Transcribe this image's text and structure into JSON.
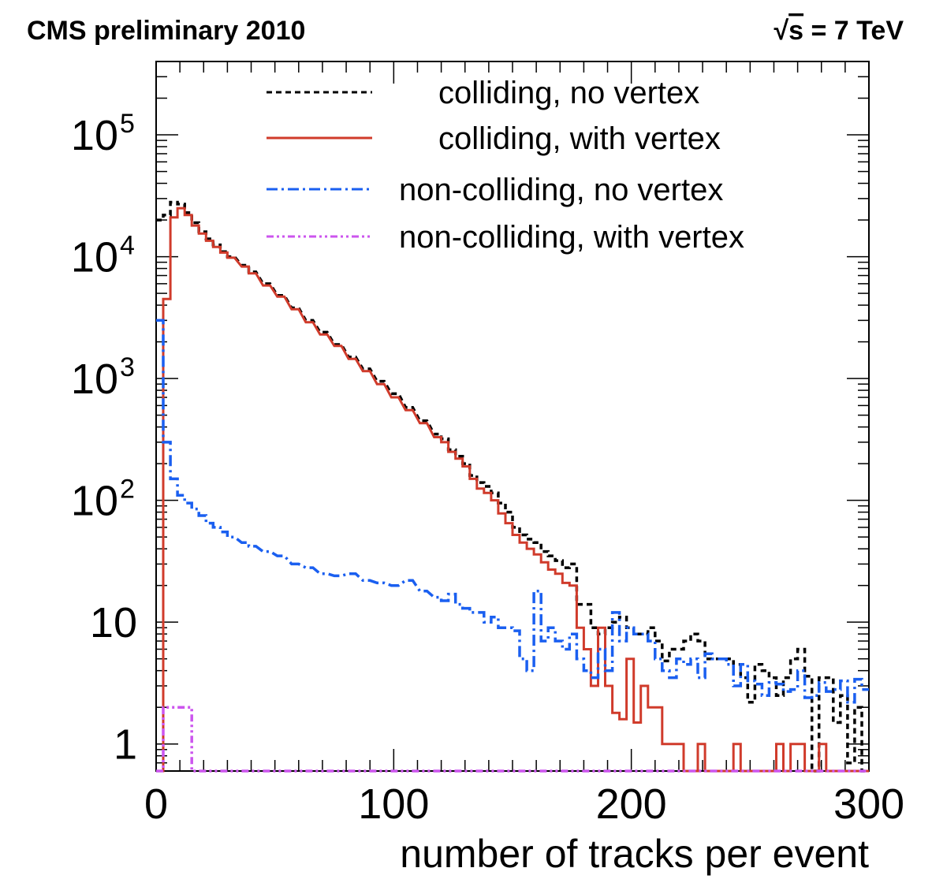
{
  "header": {
    "left": "CMS preliminary 2010",
    "right_sqrt": "√",
    "right_s": "s",
    "right_rest": " = 7 TeV"
  },
  "chart_data": {
    "type": "line",
    "step": true,
    "title": "",
    "xlabel": "number of tracks per event",
    "ylabel": "",
    "xlim": [
      0,
      300
    ],
    "ylim": [
      0.6,
      400000
    ],
    "yscale": "log",
    "grid": false,
    "legend_position": "top-right",
    "bin_width": 3,
    "x_ticks": [
      {
        "value": 0,
        "label": "0"
      },
      {
        "value": 100,
        "label": "100"
      },
      {
        "value": 200,
        "label": "200"
      },
      {
        "value": 300,
        "label": "300"
      }
    ],
    "y_ticks": [
      {
        "value": 1,
        "base": "1",
        "exp": ""
      },
      {
        "value": 10,
        "base": "10",
        "exp": ""
      },
      {
        "value": 100,
        "base": "10",
        "exp": "2"
      },
      {
        "value": 1000,
        "base": "10",
        "exp": "3"
      },
      {
        "value": 10000,
        "base": "10",
        "exp": "4"
      },
      {
        "value": 100000,
        "base": "10",
        "exp": "5"
      }
    ],
    "series": [
      {
        "name": "colliding, no   vertex",
        "color": "#000000",
        "dash": "7,5",
        "x": [
          0,
          3,
          6,
          9,
          12,
          15,
          18,
          21,
          24,
          27,
          30,
          36,
          39,
          45,
          51,
          57,
          63,
          69,
          75,
          81,
          87,
          93,
          99,
          105,
          111,
          117,
          120,
          123,
          126,
          129,
          132,
          135,
          138,
          141,
          144,
          147,
          150,
          153,
          156,
          159,
          162,
          165,
          168,
          171,
          174,
          177,
          180,
          183,
          186,
          189,
          192,
          195,
          198,
          201,
          204,
          207,
          210,
          213,
          216,
          219,
          222,
          225,
          228,
          231,
          234,
          237,
          240,
          243,
          246,
          249,
          252,
          255,
          258,
          261,
          264,
          267,
          270,
          273,
          276,
          279,
          282,
          285,
          288,
          291,
          294,
          297
        ],
        "y": [
          20000,
          22000,
          28000,
          27000,
          23000,
          19000,
          16000,
          14000,
          12500,
          11000,
          10000,
          8500,
          7500,
          6000,
          4800,
          3800,
          3000,
          2400,
          1900,
          1500,
          1200,
          950,
          750,
          580,
          450,
          350,
          320,
          260,
          230,
          200,
          160,
          140,
          130,
          115,
          95,
          80,
          60,
          52,
          48,
          45,
          38,
          35,
          32,
          28,
          30,
          14,
          14,
          9,
          8,
          9,
          10,
          11,
          9,
          8,
          8,
          9,
          7,
          4.8,
          6,
          6,
          7,
          8,
          7,
          5,
          5,
          5,
          5,
          4.5,
          3.5,
          2.2,
          4.5,
          4,
          3.5,
          2.5,
          3.5,
          5,
          6,
          3.6,
          0.6,
          3.5,
          3.5,
          1.5,
          2.5,
          0.7,
          2,
          0.6
        ]
      },
      {
        "name": "colliding, with vertex",
        "color": "#d03b2b",
        "dash": "",
        "x": [
          0,
          3,
          6,
          9,
          12,
          15,
          18,
          21,
          24,
          27,
          30,
          36,
          39,
          45,
          51,
          57,
          63,
          69,
          75,
          81,
          87,
          93,
          99,
          105,
          111,
          117,
          120,
          123,
          126,
          129,
          132,
          135,
          138,
          141,
          144,
          147,
          150,
          153,
          156,
          159,
          162,
          165,
          168,
          171,
          174,
          177,
          180,
          183,
          186,
          189,
          192,
          195,
          198,
          201,
          204,
          207,
          210,
          213,
          216,
          219,
          222,
          225,
          228,
          231,
          234,
          237,
          240,
          243,
          246,
          249,
          252,
          255,
          258,
          261,
          264,
          267,
          270,
          273,
          276,
          279,
          282,
          285,
          288,
          291,
          294,
          297
        ],
        "y": [
          0.6,
          4500,
          21000,
          25000,
          22000,
          18000,
          15500,
          13500,
          12000,
          10800,
          9800,
          8300,
          7300,
          5800,
          4700,
          3700,
          2900,
          2300,
          1850,
          1450,
          1150,
          900,
          700,
          550,
          430,
          330,
          300,
          250,
          220,
          190,
          150,
          125,
          115,
          100,
          78,
          65,
          52,
          45,
          40,
          36,
          31,
          27,
          25,
          21,
          20,
          9,
          6,
          3,
          9,
          3,
          1.8,
          1.6,
          5,
          1.5,
          3,
          2,
          2,
          1,
          1,
          1,
          0.6,
          0.6,
          1,
          0.6,
          0.6,
          0.6,
          0.6,
          1,
          0.6,
          0.6,
          0.6,
          0.6,
          0.6,
          1,
          0.6,
          1,
          1,
          0.6,
          0.6,
          1,
          0.6,
          0.6,
          0.6,
          0.6,
          0.6,
          0.6
        ]
      },
      {
        "name": "non-colliding, no   vertex",
        "color": "#1a5ff0",
        "dash": "14,5,3,5",
        "x": [
          0,
          3,
          6,
          9,
          12,
          15,
          18,
          21,
          24,
          27,
          30,
          36,
          39,
          45,
          51,
          57,
          63,
          69,
          75,
          81,
          87,
          93,
          99,
          105,
          111,
          117,
          120,
          123,
          126,
          129,
          132,
          135,
          138,
          141,
          144,
          147,
          150,
          153,
          156,
          159,
          162,
          165,
          168,
          171,
          174,
          177,
          180,
          183,
          186,
          189,
          192,
          195,
          198,
          201,
          204,
          207,
          210,
          213,
          216,
          219,
          222,
          225,
          228,
          231,
          234,
          237,
          240,
          243,
          246,
          249,
          252,
          255,
          258,
          261,
          264,
          267,
          270,
          273,
          276,
          279,
          282,
          285,
          288,
          291,
          294,
          297
        ],
        "y": [
          3000,
          300,
          150,
          110,
          95,
          85,
          75,
          65,
          60,
          55,
          50,
          45,
          42,
          38,
          35,
          30,
          28,
          25,
          24,
          25,
          22,
          21,
          20,
          22,
          18,
          16,
          15,
          17,
          14,
          13,
          12,
          12,
          10,
          11,
          9,
          9,
          8.5,
          5,
          4,
          18,
          7,
          9,
          7,
          6,
          8,
          5,
          4,
          3.5,
          6,
          4,
          12,
          7,
          9,
          8,
          8,
          7,
          5,
          4,
          3.5,
          5,
          4.5,
          5,
          3.5,
          5.5,
          5,
          5,
          4.5,
          3,
          4.5,
          3.3,
          3.1,
          2.5,
          3.2,
          3.1,
          2.7,
          2.8,
          4,
          2.4,
          2.5,
          3.2,
          2.7,
          2.8,
          3.3,
          2.2,
          3.4,
          2.8
        ]
      },
      {
        "name": "non-colliding, with vertex",
        "color": "#cc55ee",
        "dash": "9,4,3,4,3,4",
        "x": [
          0,
          3,
          6,
          9,
          12,
          15,
          18,
          21,
          24,
          27,
          30,
          36,
          39,
          45,
          51,
          57,
          63,
          69,
          75,
          81,
          87,
          93,
          99,
          105,
          111,
          117,
          120,
          123,
          126,
          129,
          132,
          135,
          138,
          141,
          144,
          147,
          150,
          153,
          156,
          159,
          162,
          165,
          168,
          171,
          174,
          177,
          180,
          183,
          186,
          189,
          192,
          195,
          198,
          201,
          204,
          207,
          210,
          213,
          216,
          219,
          222,
          225,
          228,
          231,
          234,
          237,
          240,
          243,
          246,
          249,
          252,
          255,
          258,
          261,
          264,
          267,
          270,
          273,
          276,
          279,
          282,
          285,
          288,
          291,
          294,
          297
        ],
        "y": [
          0.6,
          2,
          2,
          2,
          2,
          0.6,
          0.6,
          0.6,
          0.6,
          0.6,
          0.6,
          0.6,
          0.6,
          0.6,
          0.6,
          0.6,
          0.6,
          0.6,
          0.6,
          0.6,
          0.6,
          0.6,
          0.6,
          0.6,
          0.6,
          0.6,
          0.6,
          0.6,
          0.6,
          0.6,
          0.6,
          0.6,
          0.6,
          0.6,
          0.6,
          0.6,
          0.6,
          0.6,
          0.6,
          0.6,
          0.6,
          0.6,
          0.6,
          0.6,
          0.6,
          0.6,
          0.6,
          0.6,
          0.6,
          0.6,
          0.6,
          0.6,
          0.6,
          0.6,
          0.6,
          0.6,
          0.6,
          0.6,
          0.6,
          0.6,
          0.6,
          0.6,
          0.6,
          0.6,
          0.6,
          0.6,
          0.6,
          0.6,
          0.6,
          0.6,
          0.6,
          0.6,
          0.6,
          0.6,
          0.6,
          0.6,
          0.6,
          0.6,
          0.6,
          0.6,
          0.6,
          0.6,
          0.6,
          0.6,
          0.6,
          0.6
        ]
      }
    ]
  }
}
